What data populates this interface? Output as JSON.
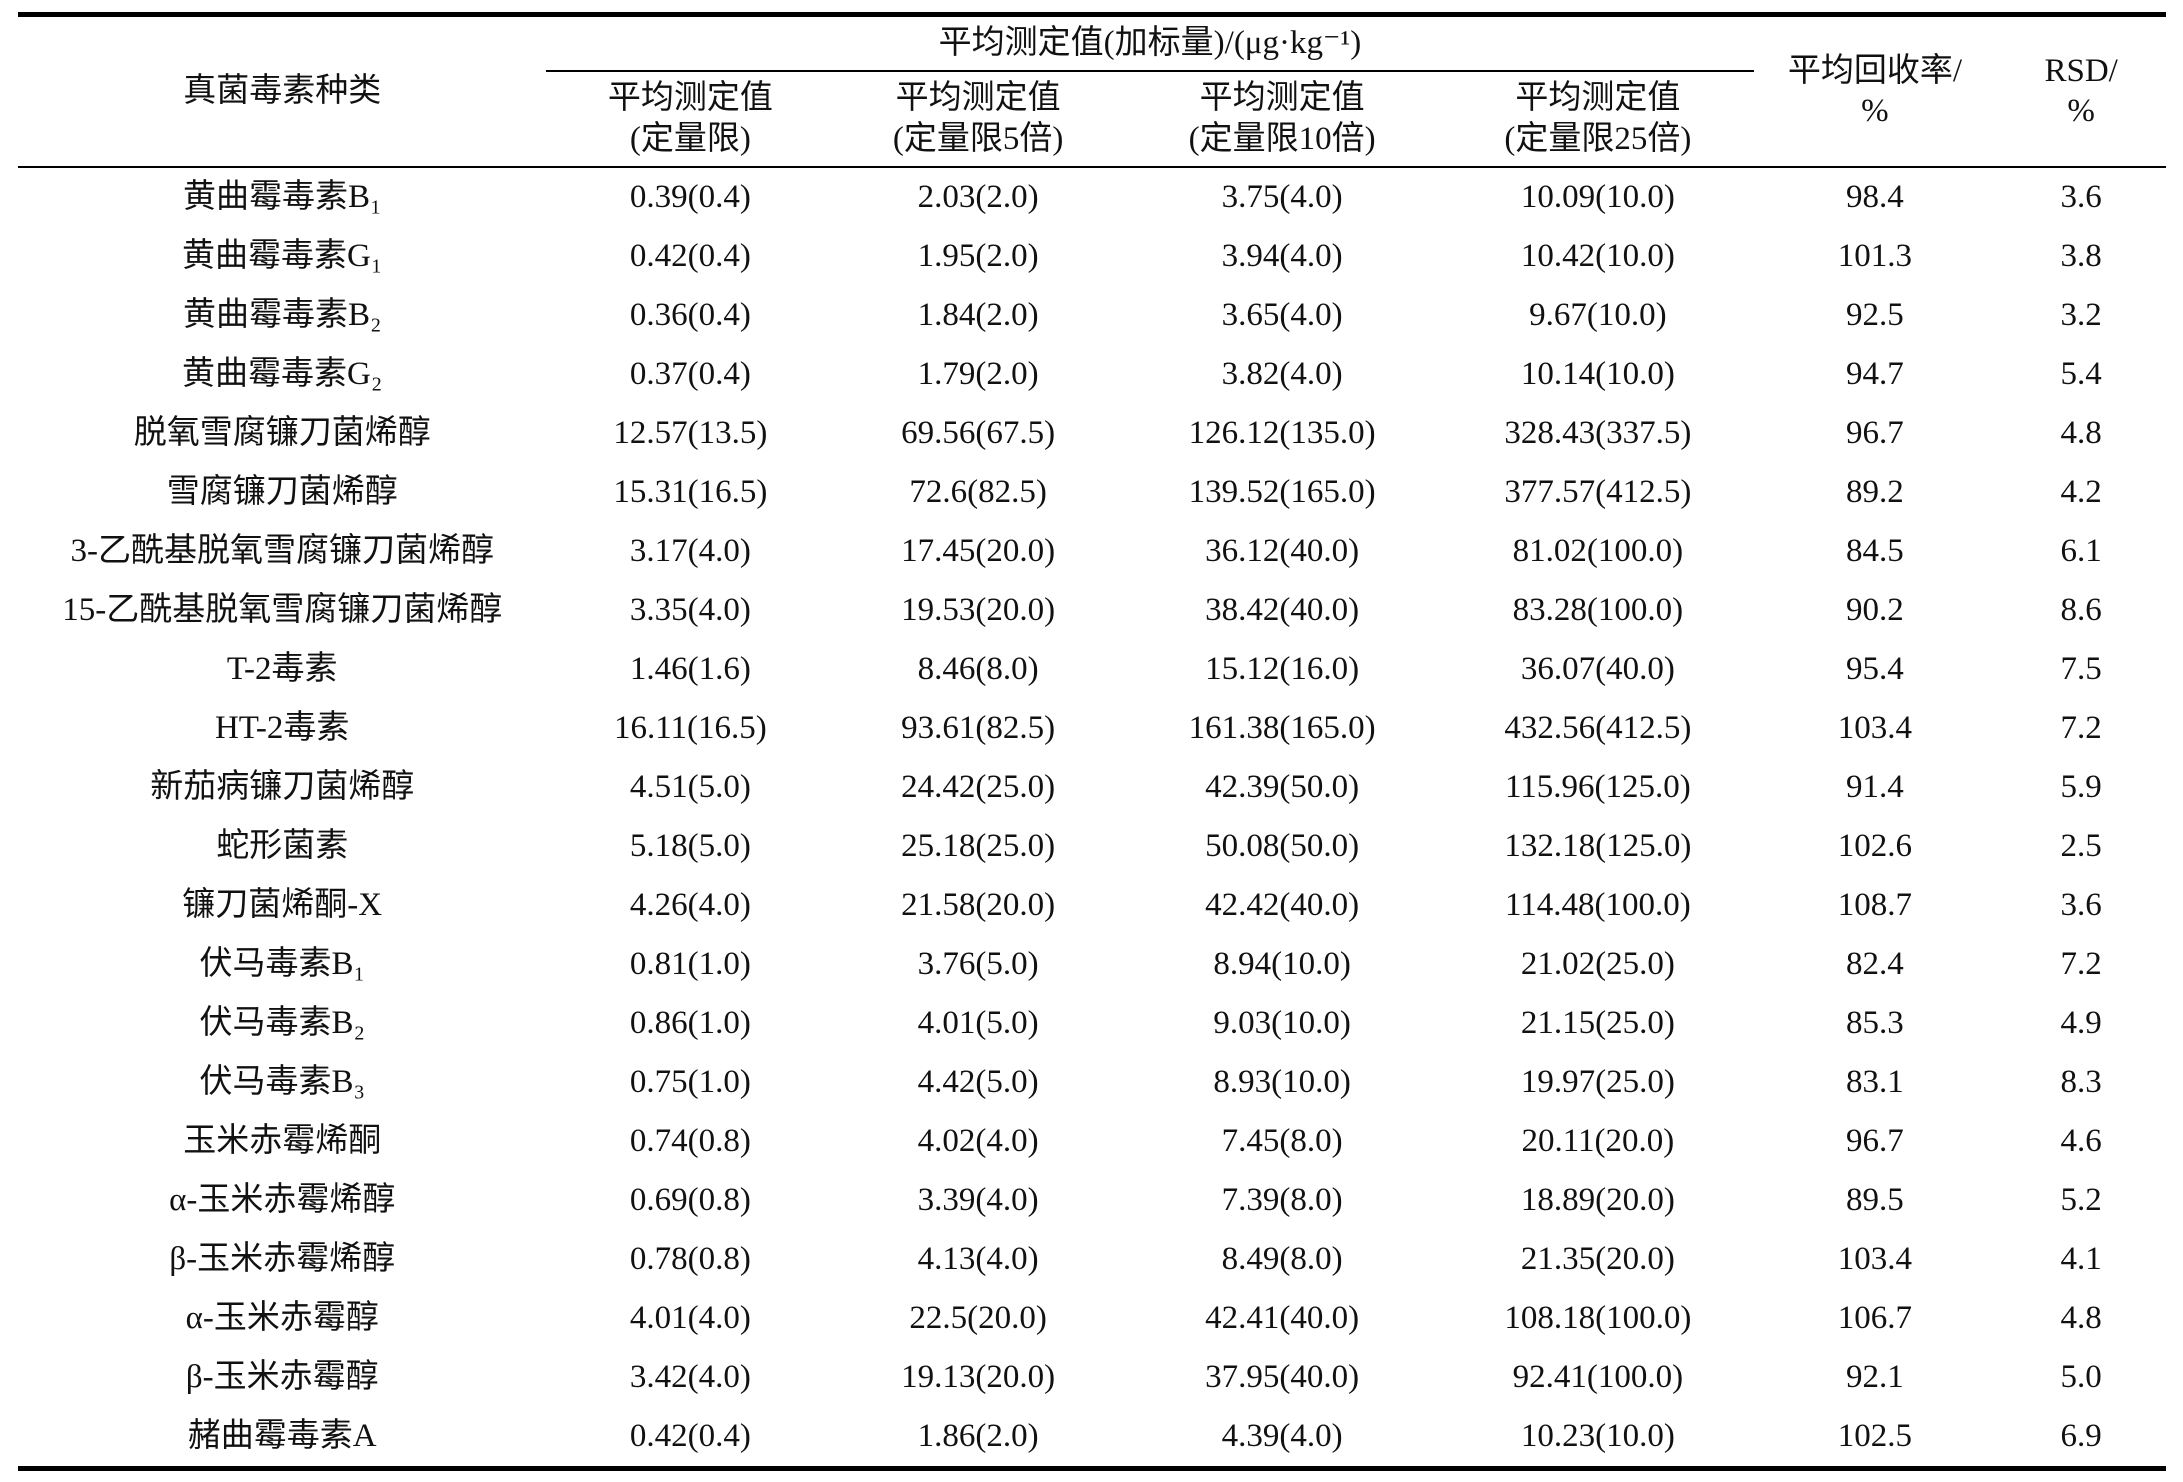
{
  "table": {
    "analyte_header": "真菌毒素种类",
    "span_header": "平均测定值(加标量)/(μg·kg⁻¹)",
    "sub_headers": [
      {
        "line1": "平均测定值",
        "line2": "(定量限)"
      },
      {
        "line1": "平均测定值",
        "line2": "(定量限5倍)"
      },
      {
        "line1": "平均测定值",
        "line2": "(定量限10倍)"
      },
      {
        "line1": "平均测定值",
        "line2": "(定量限25倍)"
      }
    ],
    "recovery_header": {
      "line1": "平均回收率/",
      "line2": "%"
    },
    "rsd_header": {
      "line1": "RSD/",
      "line2": "%"
    },
    "rows": [
      {
        "analyte": "黄曲霉毒素B₁",
        "loq": "0.39(0.4)",
        "loq5": "2.03(2.0)",
        "loq10": "3.75(4.0)",
        "loq25": "10.09(10.0)",
        "recovery": "98.4",
        "rsd": "3.6"
      },
      {
        "analyte": "黄曲霉毒素G₁",
        "loq": "0.42(0.4)",
        "loq5": "1.95(2.0)",
        "loq10": "3.94(4.0)",
        "loq25": "10.42(10.0)",
        "recovery": "101.3",
        "rsd": "3.8"
      },
      {
        "analyte": "黄曲霉毒素B₂",
        "loq": "0.36(0.4)",
        "loq5": "1.84(2.0)",
        "loq10": "3.65(4.0)",
        "loq25": "9.67(10.0)",
        "recovery": "92.5",
        "rsd": "3.2"
      },
      {
        "analyte": "黄曲霉毒素G₂",
        "loq": "0.37(0.4)",
        "loq5": "1.79(2.0)",
        "loq10": "3.82(4.0)",
        "loq25": "10.14(10.0)",
        "recovery": "94.7",
        "rsd": "5.4"
      },
      {
        "analyte": "脱氧雪腐镰刀菌烯醇",
        "loq": "12.57(13.5)",
        "loq5": "69.56(67.5)",
        "loq10": "126.12(135.0)",
        "loq25": "328.43(337.5)",
        "recovery": "96.7",
        "rsd": "4.8"
      },
      {
        "analyte": "雪腐镰刀菌烯醇",
        "loq": "15.31(16.5)",
        "loq5": "72.6(82.5)",
        "loq10": "139.52(165.0)",
        "loq25": "377.57(412.5)",
        "recovery": "89.2",
        "rsd": "4.2"
      },
      {
        "analyte": "3-乙酰基脱氧雪腐镰刀菌烯醇",
        "loq": "3.17(4.0)",
        "loq5": "17.45(20.0)",
        "loq10": "36.12(40.0)",
        "loq25": "81.02(100.0)",
        "recovery": "84.5",
        "rsd": "6.1"
      },
      {
        "analyte": "15-乙酰基脱氧雪腐镰刀菌烯醇",
        "loq": "3.35(4.0)",
        "loq5": "19.53(20.0)",
        "loq10": "38.42(40.0)",
        "loq25": "83.28(100.0)",
        "recovery": "90.2",
        "rsd": "8.6"
      },
      {
        "analyte": "T-2毒素",
        "loq": "1.46(1.6)",
        "loq5": "8.46(8.0)",
        "loq10": "15.12(16.0)",
        "loq25": "36.07(40.0)",
        "recovery": "95.4",
        "rsd": "7.5"
      },
      {
        "analyte": "HT-2毒素",
        "loq": "16.11(16.5)",
        "loq5": "93.61(82.5)",
        "loq10": "161.38(165.0)",
        "loq25": "432.56(412.5)",
        "recovery": "103.4",
        "rsd": "7.2"
      },
      {
        "analyte": "新茄病镰刀菌烯醇",
        "loq": "4.51(5.0)",
        "loq5": "24.42(25.0)",
        "loq10": "42.39(50.0)",
        "loq25": "115.96(125.0)",
        "recovery": "91.4",
        "rsd": "5.9"
      },
      {
        "analyte": "蛇形菌素",
        "loq": "5.18(5.0)",
        "loq5": "25.18(25.0)",
        "loq10": "50.08(50.0)",
        "loq25": "132.18(125.0)",
        "recovery": "102.6",
        "rsd": "2.5"
      },
      {
        "analyte": "镰刀菌烯酮-X",
        "loq": "4.26(4.0)",
        "loq5": "21.58(20.0)",
        "loq10": "42.42(40.0)",
        "loq25": "114.48(100.0)",
        "recovery": "108.7",
        "rsd": "3.6"
      },
      {
        "analyte": "伏马毒素B₁",
        "loq": "0.81(1.0)",
        "loq5": "3.76(5.0)",
        "loq10": "8.94(10.0)",
        "loq25": "21.02(25.0)",
        "recovery": "82.4",
        "rsd": "7.2"
      },
      {
        "analyte": "伏马毒素B₂",
        "loq": "0.86(1.0)",
        "loq5": "4.01(5.0)",
        "loq10": "9.03(10.0)",
        "loq25": "21.15(25.0)",
        "recovery": "85.3",
        "rsd": "4.9"
      },
      {
        "analyte": "伏马毒素B₃",
        "loq": "0.75(1.0)",
        "loq5": "4.42(5.0)",
        "loq10": "8.93(10.0)",
        "loq25": "19.97(25.0)",
        "recovery": "83.1",
        "rsd": "8.3"
      },
      {
        "analyte": "玉米赤霉烯酮",
        "loq": "0.74(0.8)",
        "loq5": "4.02(4.0)",
        "loq10": "7.45(8.0)",
        "loq25": "20.11(20.0)",
        "recovery": "96.7",
        "rsd": "4.6"
      },
      {
        "analyte": "α-玉米赤霉烯醇",
        "loq": "0.69(0.8)",
        "loq5": "3.39(4.0)",
        "loq10": "7.39(8.0)",
        "loq25": "18.89(20.0)",
        "recovery": "89.5",
        "rsd": "5.2"
      },
      {
        "analyte": "β-玉米赤霉烯醇",
        "loq": "0.78(0.8)",
        "loq5": "4.13(4.0)",
        "loq10": "8.49(8.0)",
        "loq25": "21.35(20.0)",
        "recovery": "103.4",
        "rsd": "4.1"
      },
      {
        "analyte": "α-玉米赤霉醇",
        "loq": "4.01(4.0)",
        "loq5": "22.5(20.0)",
        "loq10": "42.41(40.0)",
        "loq25": "108.18(100.0)",
        "recovery": "106.7",
        "rsd": "4.8"
      },
      {
        "analyte": "β-玉米赤霉醇",
        "loq": "3.42(4.0)",
        "loq5": "19.13(20.0)",
        "loq10": "37.95(40.0)",
        "loq25": "92.41(100.0)",
        "recovery": "92.1",
        "rsd": "5.0"
      },
      {
        "analyte": "赭曲霉毒素A",
        "loq": "0.42(0.4)",
        "loq5": "1.86(2.0)",
        "loq10": "4.39(4.0)",
        "loq25": "10.23(10.0)",
        "recovery": "102.5",
        "rsd": "6.9"
      }
    ]
  }
}
